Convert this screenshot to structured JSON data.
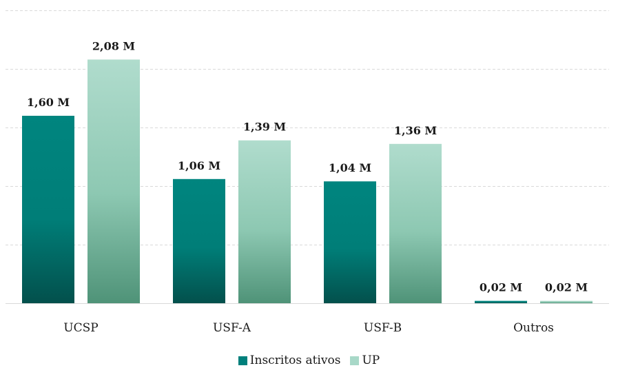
{
  "chart_data": {
    "type": "bar",
    "categories": [
      "UCSP",
      "USF-A",
      "USF-B",
      "Outros"
    ],
    "series": [
      {
        "name": "Inscritos ativos",
        "values": [
          1.6,
          1.06,
          1.04,
          0.02
        ],
        "labels": [
          "1,60 M",
          "1,06 M",
          "1,04 M",
          "0,02 M"
        ],
        "color": "#00807c"
      },
      {
        "name": "UP",
        "values": [
          2.08,
          1.39,
          1.36,
          0.02
        ],
        "labels": [
          "2,08 M",
          "1,39 M",
          "1,36 M",
          "0,02 M"
        ],
        "color": "#a8d8c8"
      }
    ],
    "ylim": [
      0,
      2.5
    ],
    "grid": true,
    "legend_position": "bottom"
  }
}
